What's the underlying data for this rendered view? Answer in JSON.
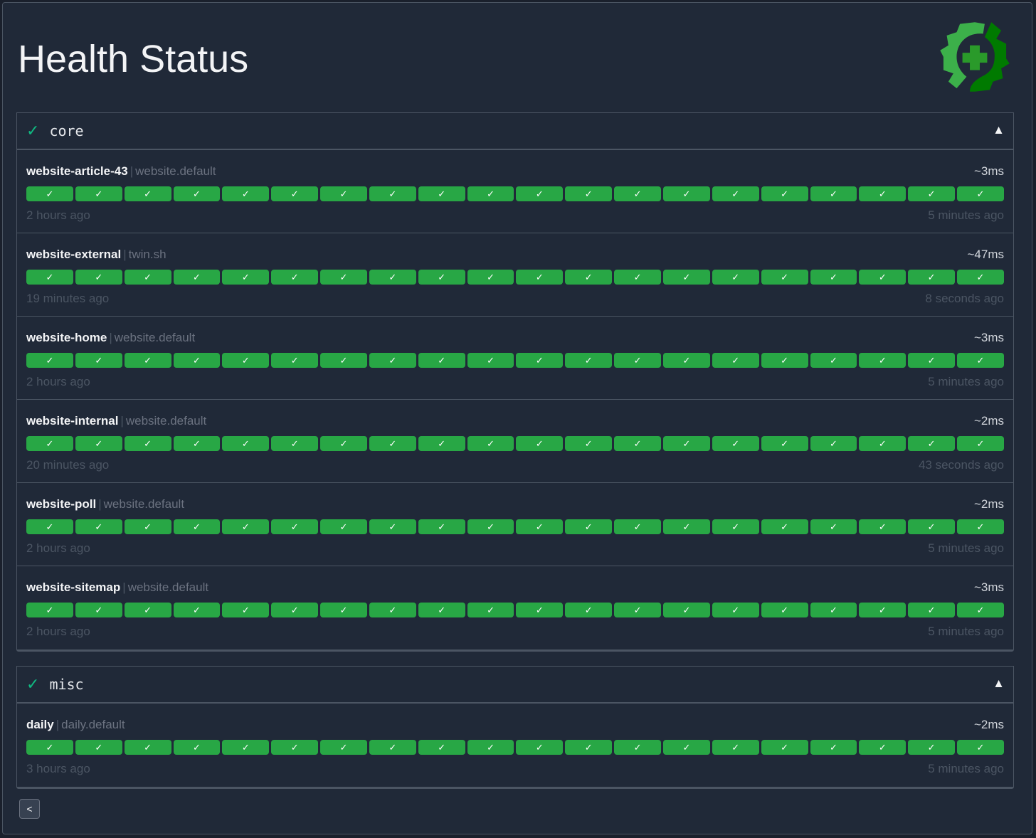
{
  "page": {
    "title": "Health Status",
    "back_label": "<"
  },
  "colors": {
    "success": "#28a745",
    "logo_light": "#3cb04a",
    "logo_dark": "#007a00",
    "section_check": "#10b981"
  },
  "sections": [
    {
      "name": "core",
      "status_icon": "check-icon",
      "toggle": "▲",
      "endpoints": [
        {
          "name": "website-article-43",
          "group": "website.default",
          "response_time": "~3ms",
          "oldest": "2 hours ago",
          "newest": "5 minutes ago",
          "results": [
            true,
            true,
            true,
            true,
            true,
            true,
            true,
            true,
            true,
            true,
            true,
            true,
            true,
            true,
            true,
            true,
            true,
            true,
            true,
            true
          ]
        },
        {
          "name": "website-external",
          "group": "twin.sh",
          "response_time": "~47ms",
          "oldest": "19 minutes ago",
          "newest": "8 seconds ago",
          "results": [
            true,
            true,
            true,
            true,
            true,
            true,
            true,
            true,
            true,
            true,
            true,
            true,
            true,
            true,
            true,
            true,
            true,
            true,
            true,
            true
          ]
        },
        {
          "name": "website-home",
          "group": "website.default",
          "response_time": "~3ms",
          "oldest": "2 hours ago",
          "newest": "5 minutes ago",
          "results": [
            true,
            true,
            true,
            true,
            true,
            true,
            true,
            true,
            true,
            true,
            true,
            true,
            true,
            true,
            true,
            true,
            true,
            true,
            true,
            true
          ]
        },
        {
          "name": "website-internal",
          "group": "website.default",
          "response_time": "~2ms",
          "oldest": "20 minutes ago",
          "newest": "43 seconds ago",
          "results": [
            true,
            true,
            true,
            true,
            true,
            true,
            true,
            true,
            true,
            true,
            true,
            true,
            true,
            true,
            true,
            true,
            true,
            true,
            true,
            true
          ]
        },
        {
          "name": "website-poll",
          "group": "website.default",
          "response_time": "~2ms",
          "oldest": "2 hours ago",
          "newest": "5 minutes ago",
          "results": [
            true,
            true,
            true,
            true,
            true,
            true,
            true,
            true,
            true,
            true,
            true,
            true,
            true,
            true,
            true,
            true,
            true,
            true,
            true,
            true
          ]
        },
        {
          "name": "website-sitemap",
          "group": "website.default",
          "response_time": "~3ms",
          "oldest": "2 hours ago",
          "newest": "5 minutes ago",
          "results": [
            true,
            true,
            true,
            true,
            true,
            true,
            true,
            true,
            true,
            true,
            true,
            true,
            true,
            true,
            true,
            true,
            true,
            true,
            true,
            true
          ]
        }
      ]
    },
    {
      "name": "misc",
      "status_icon": "check-icon",
      "toggle": "▲",
      "endpoints": [
        {
          "name": "daily",
          "group": "daily.default",
          "response_time": "~2ms",
          "oldest": "3 hours ago",
          "newest": "5 minutes ago",
          "results": [
            true,
            true,
            true,
            true,
            true,
            true,
            true,
            true,
            true,
            true,
            true,
            true,
            true,
            true,
            true,
            true,
            true,
            true,
            true,
            true
          ]
        }
      ]
    }
  ]
}
